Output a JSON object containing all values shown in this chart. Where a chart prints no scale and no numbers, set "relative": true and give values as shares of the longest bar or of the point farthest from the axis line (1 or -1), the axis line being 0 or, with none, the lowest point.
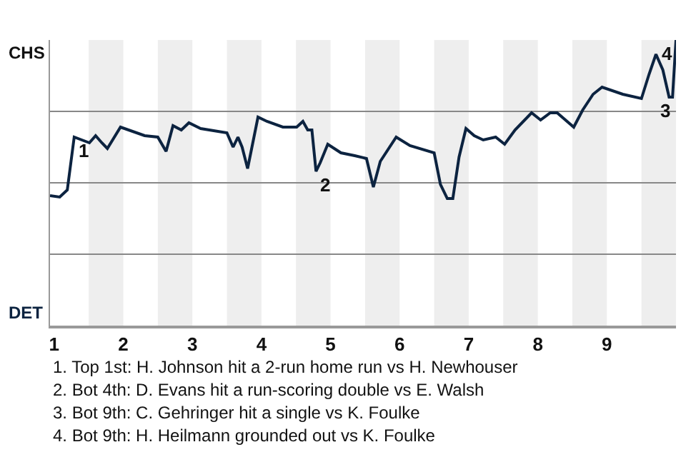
{
  "chart_data": {
    "type": "line",
    "relative": true,
    "x": [
      0.94,
      1.08,
      1.19,
      1.29,
      1.51,
      1.6,
      1.69,
      1.77,
      1.96,
      2.31,
      2.5,
      2.62,
      2.72,
      2.84,
      2.95,
      3.12,
      3.5,
      3.59,
      3.66,
      3.72,
      3.8,
      3.95,
      4.08,
      4.31,
      4.51,
      4.6,
      4.67,
      4.73,
      4.79,
      4.85,
      4.96,
      5.15,
      5.35,
      5.52,
      5.62,
      5.72,
      5.95,
      6.15,
      6.5,
      6.59,
      6.69,
      6.77,
      6.86,
      6.96,
      7.08,
      7.21,
      7.39,
      7.52,
      7.67,
      7.91,
      8.04,
      8.18,
      8.28,
      8.52,
      8.65,
      8.8,
      8.93,
      9.23,
      9.5,
      9.61,
      9.71,
      9.81,
      9.9,
      9.95,
      10
    ],
    "series": [
      {
        "color": "#0c2340",
        "values": [
          0.455,
          0.45,
          0.475,
          0.66,
          0.64,
          0.665,
          0.64,
          0.62,
          0.695,
          0.665,
          0.66,
          0.61,
          0.7,
          0.685,
          0.71,
          0.69,
          0.675,
          0.625,
          0.66,
          0.625,
          0.55,
          0.73,
          0.715,
          0.695,
          0.695,
          0.715,
          0.685,
          0.685,
          0.54,
          0.57,
          0.635,
          0.605,
          0.595,
          0.585,
          0.485,
          0.575,
          0.66,
          0.63,
          0.605,
          0.495,
          0.445,
          0.445,
          0.59,
          0.69,
          0.665,
          0.65,
          0.66,
          0.635,
          0.685,
          0.745,
          0.72,
          0.745,
          0.745,
          0.695,
          0.755,
          0.81,
          0.835,
          0.81,
          0.795,
          0.88,
          0.95,
          0.895,
          0.8,
          0.8,
          1
        ]
      }
    ],
    "xlim": [
      0.94,
      10
    ],
    "xticks": [
      1,
      2,
      3,
      4,
      5,
      6,
      7,
      8,
      9
    ],
    "grid": "y",
    "bands": [
      {
        "axis": "x",
        "from": 1.5,
        "to": 2,
        "color": "#eeeeee"
      },
      {
        "axis": "x",
        "from": 2.5,
        "to": 3,
        "color": "#eeeeee"
      },
      {
        "axis": "x",
        "from": 3.5,
        "to": 4,
        "color": "#eeeeee"
      },
      {
        "axis": "x",
        "from": 4.5,
        "to": 5,
        "color": "#eeeeee"
      },
      {
        "axis": "x",
        "from": 5.5,
        "to": 6,
        "color": "#eeeeee"
      },
      {
        "axis": "x",
        "from": 6.5,
        "to": 7,
        "color": "#eeeeee"
      },
      {
        "axis": "x",
        "from": 7.5,
        "to": 8,
        "color": "#eeeeee"
      },
      {
        "axis": "x",
        "from": 8.5,
        "to": 9,
        "color": "#eeeeee"
      },
      {
        "axis": "x",
        "from": 9.5,
        "to": 10,
        "color": "#eeeeee"
      }
    ],
    "annotations": [
      "CHS",
      "DET",
      {
        "text": "1",
        "x": 1.29,
        "y": 0.66
      },
      {
        "text": "2",
        "x": 4.79,
        "y": 0.54
      },
      {
        "text": "3",
        "x": 9.95,
        "y": 0.8
      },
      {
        "text": "4",
        "x": 10,
        "y": 1
      },
      "1. Top 1st: H. Johnson hit a 2-run home run vs H. Newhouser",
      "2. Bot 4th: D. Evans hit a run-scoring double vs E. Walsh",
      "3. Bot 9th: C. Gehringer hit a single vs K. Foulke",
      "4. Bot 9th: H. Heilmann grounded out vs K. Foulke"
    ]
  }
}
